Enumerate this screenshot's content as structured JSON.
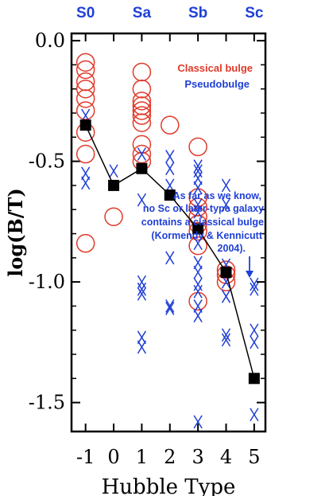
{
  "chart_data": {
    "type": "scatter",
    "xlabel": "Hubble Type",
    "ylabel": "log(B/T)",
    "xlim": [
      -1.5,
      5.4
    ],
    "ylim": [
      -1.62,
      0.03
    ],
    "x_ticks": [
      -1,
      0,
      1,
      2,
      3,
      4,
      5
    ],
    "y_ticks": [
      0.0,
      -0.5,
      -1.0,
      -1.5
    ],
    "y_tick_labels": [
      "0.0",
      "-0.5",
      "-1.0",
      "-1.5"
    ],
    "top_type_labels": [
      {
        "x": -1,
        "label": "S0"
      },
      {
        "x": 1,
        "label": "Sa"
      },
      {
        "x": 3,
        "label": "Sb"
      },
      {
        "x": 5,
        "label": "Sc"
      }
    ],
    "legend": {
      "classical": "Classical bulge",
      "pseudo": "Pseudobulge"
    },
    "annotation": {
      "lines": [
        "As far as we know,",
        "no Sc or later-type galaxy",
        "contains a classical bulge",
        "(Kormendy & Kennicutt",
        "2004)."
      ],
      "arrow_to": [
        5,
        -1.0
      ]
    },
    "colors": {
      "classical": "#e03a2a",
      "pseudo": "#1f3fd6",
      "mean": "#000000"
    },
    "series": [
      {
        "name": "Classical bulge",
        "marker": "circle",
        "points": [
          [
            -1,
            -0.09
          ],
          [
            -1,
            -0.12
          ],
          [
            -1,
            -0.17
          ],
          [
            -1,
            -0.2
          ],
          [
            -1,
            -0.24
          ],
          [
            -1,
            -0.29
          ],
          [
            -1,
            -0.38
          ],
          [
            -1,
            -0.47
          ],
          [
            -1,
            -0.84
          ],
          [
            0,
            -0.73
          ],
          [
            1,
            -0.13
          ],
          [
            1,
            -0.2
          ],
          [
            1,
            -0.25
          ],
          [
            1,
            -0.27
          ],
          [
            1,
            -0.29
          ],
          [
            1,
            -0.31
          ],
          [
            1,
            -0.34
          ],
          [
            1,
            -0.43
          ],
          [
            1,
            -0.47
          ],
          [
            1,
            -0.5
          ],
          [
            2,
            -0.35
          ],
          [
            3,
            -0.44
          ],
          [
            3,
            -0.65
          ],
          [
            3,
            -0.69
          ],
          [
            3,
            -0.73
          ],
          [
            3,
            -0.76
          ],
          [
            3,
            -0.79
          ],
          [
            3,
            -0.85
          ],
          [
            3,
            -1.08
          ],
          [
            4,
            -0.95
          ],
          [
            4,
            -0.97
          ],
          [
            4,
            -1.0
          ]
        ]
      },
      {
        "name": "Pseudobulge",
        "marker": "x",
        "points": [
          [
            -1,
            -0.31
          ],
          [
            -1,
            -0.55
          ],
          [
            -1,
            -0.59
          ],
          [
            0,
            -0.54
          ],
          [
            1,
            -0.47
          ],
          [
            1,
            -0.66
          ],
          [
            1,
            -1.0
          ],
          [
            1,
            -1.03
          ],
          [
            1,
            -1.05
          ],
          [
            1,
            -1.23
          ],
          [
            1,
            -1.27
          ],
          [
            2,
            -0.48
          ],
          [
            2,
            -0.53
          ],
          [
            2,
            -0.6
          ],
          [
            2,
            -0.9
          ],
          [
            2,
            -1.1
          ],
          [
            2,
            -1.11
          ],
          [
            3,
            -0.52
          ],
          [
            3,
            -0.54
          ],
          [
            3,
            -0.57
          ],
          [
            3,
            -0.61
          ],
          [
            3,
            -0.68
          ],
          [
            3,
            -0.71
          ],
          [
            3,
            -0.84
          ],
          [
            3,
            -0.92
          ],
          [
            3,
            -0.96
          ],
          [
            3,
            -1.01
          ],
          [
            3,
            -1.04
          ],
          [
            3,
            -1.1
          ],
          [
            3,
            -1.14
          ],
          [
            3,
            -1.58
          ],
          [
            4,
            -0.6
          ],
          [
            4,
            -0.68
          ],
          [
            4,
            -0.93
          ],
          [
            4,
            -1.0
          ],
          [
            4,
            -1.06
          ],
          [
            4,
            -1.22
          ],
          [
            4,
            -1.24
          ],
          [
            5,
            -1.01
          ],
          [
            5,
            -1.03
          ],
          [
            5,
            -1.2
          ],
          [
            5,
            -1.25
          ],
          [
            5,
            -1.55
          ]
        ]
      },
      {
        "name": "mean",
        "marker": "square",
        "points": [
          [
            -1,
            -0.35
          ],
          [
            0,
            -0.6
          ],
          [
            1,
            -0.53
          ],
          [
            2,
            -0.64
          ],
          [
            3,
            -0.78
          ],
          [
            4,
            -0.96
          ],
          [
            5,
            -1.4
          ]
        ]
      }
    ]
  }
}
